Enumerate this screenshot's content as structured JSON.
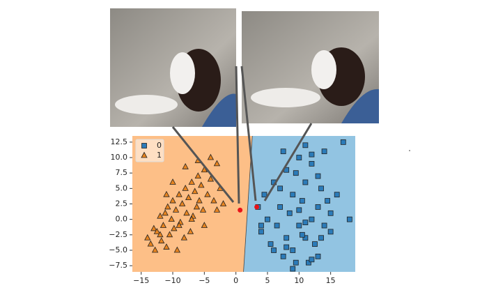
{
  "chart_data": {
    "type": "scatter",
    "xlim": [
      -16.4,
      18.9
    ],
    "ylim": [
      -8.5,
      13.5
    ],
    "xticks": [
      {
        "value": -15,
        "label": "−15"
      },
      {
        "value": -10,
        "label": "−10"
      },
      {
        "value": -5,
        "label": "−5"
      },
      0,
      5,
      10,
      15
    ],
    "yticks": [
      {
        "value": -7.5,
        "label": "−7.5"
      },
      {
        "value": -5,
        "label": "−5.0"
      },
      {
        "value": -2.5,
        "label": "−2.5"
      },
      {
        "value": 0,
        "label": "0.0"
      },
      2.5,
      {
        "value": 5,
        "label": "5.0"
      },
      7.5,
      {
        "value": 10,
        "label": "10.0"
      },
      12.5
    ],
    "legend": "upper left",
    "regions": {
      "left_color": "#fdbf87",
      "right_color": "#92c4e2"
    },
    "decision_boundary": {
      "x": [
        1.2,
        2.6
      ],
      "y": [
        -8.5,
        13.5
      ]
    },
    "series": [
      {
        "name": "0",
        "marker": "square",
        "color": "#2b7bb9",
        "x": [
          3.5,
          4,
          4.5,
          5,
          5.5,
          6,
          6.5,
          7,
          7.5,
          8,
          8,
          8.5,
          9,
          9,
          9.5,
          10,
          10,
          10.5,
          11,
          11,
          11.5,
          12,
          12,
          12.5,
          13,
          13,
          13.5,
          14,
          14.5,
          15,
          16,
          17,
          18,
          4,
          6,
          7,
          9,
          10,
          11,
          12,
          13,
          14,
          15,
          8,
          9.5,
          10.5,
          12,
          11,
          7.5,
          13.5
        ],
        "values": [
          2,
          -2,
          4,
          0,
          -4,
          6,
          -1,
          2,
          -6,
          8,
          -3,
          1,
          -5,
          4,
          -7,
          10,
          -1,
          3,
          -3,
          6,
          -7,
          0,
          9,
          -4,
          2,
          -6,
          5,
          -1,
          3,
          -2,
          4,
          12.5,
          0,
          -1,
          -5,
          5,
          -8,
          1.5,
          12,
          -6.5,
          7,
          11,
          1,
          -4.5,
          7.5,
          -2.5,
          10.5,
          -0.5,
          11,
          -3
        ]
      },
      {
        "name": "1",
        "marker": "triangle",
        "color": "#e8841f",
        "x": [
          -14,
          -13.5,
          -13,
          -12.8,
          -12.5,
          -12,
          -11.8,
          -11.5,
          -11.2,
          -11,
          -10.8,
          -10.5,
          -10.2,
          -10,
          -9.8,
          -9.5,
          -9.3,
          -9,
          -8.8,
          -8.5,
          -8.2,
          -8,
          -7.8,
          -7.5,
          -7.2,
          -7,
          -6.8,
          -6.5,
          -6.2,
          -6,
          -5.8,
          -5.5,
          -5.2,
          -5,
          -4.5,
          -4,
          -3.5,
          -3,
          -2.5,
          -2,
          -12,
          -10,
          -8,
          -6,
          -4,
          -9,
          -7,
          -11,
          -5,
          -3
        ],
        "values": [
          -3,
          -4,
          -1.5,
          -5,
          -2,
          0.5,
          -3.5,
          -1,
          1,
          -4.5,
          2,
          -2.5,
          0,
          3,
          -1.5,
          1.5,
          -5,
          4,
          -0.5,
          2.5,
          -3,
          5,
          1,
          3.5,
          -2,
          6,
          0.5,
          4.5,
          2,
          7,
          3,
          5.5,
          1.5,
          8,
          4,
          6.5,
          3,
          9,
          5,
          2.5,
          -2.5,
          6,
          8.5,
          9.5,
          10,
          -1,
          0,
          4,
          -1,
          1.5
        ]
      }
    ],
    "highlighted_points": {
      "color": "#e8141a",
      "x": [
        0.66,
        3.3
      ],
      "values": [
        1.5,
        2.0
      ]
    }
  }
}
